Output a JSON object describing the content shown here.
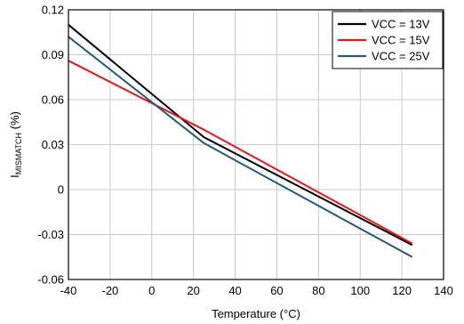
{
  "chart_data": {
    "type": "line",
    "xlabel": "Temperature (°C)",
    "ylabel_main": "I",
    "ylabel_sub": "MISMATCH",
    "ylabel_tail": " (%)",
    "xlim": [
      -40,
      140
    ],
    "ylim": [
      -0.06,
      0.12
    ],
    "xticks": [
      -40,
      -20,
      0,
      20,
      40,
      60,
      80,
      100,
      120,
      140
    ],
    "xtick_labels": [
      "-40",
      "-20",
      "0",
      "20",
      "40",
      "60",
      "80",
      "100",
      "120",
      "140"
    ],
    "yticks": [
      -0.06,
      -0.03,
      0,
      0.03,
      0.06,
      0.09,
      0.12
    ],
    "ytick_labels": [
      "-0.06",
      "-0.03",
      "0",
      "0.03",
      "0.06",
      "0.09",
      "0.12"
    ],
    "grid": true,
    "legend_position": "top-right",
    "series": [
      {
        "name": "VCC = 13V",
        "color": "#000000",
        "x": [
          -40,
          25,
          125
        ],
        "y": [
          0.11,
          0.035,
          -0.037
        ]
      },
      {
        "name": "VCC = 15V",
        "color": "#e8151b",
        "x": [
          -40,
          25,
          125
        ],
        "y": [
          0.086,
          0.04,
          -0.036
        ]
      },
      {
        "name": "VCC = 25V",
        "color": "#1f5a78",
        "x": [
          -40,
          25,
          125
        ],
        "y": [
          0.102,
          0.031,
          -0.045
        ]
      }
    ]
  }
}
